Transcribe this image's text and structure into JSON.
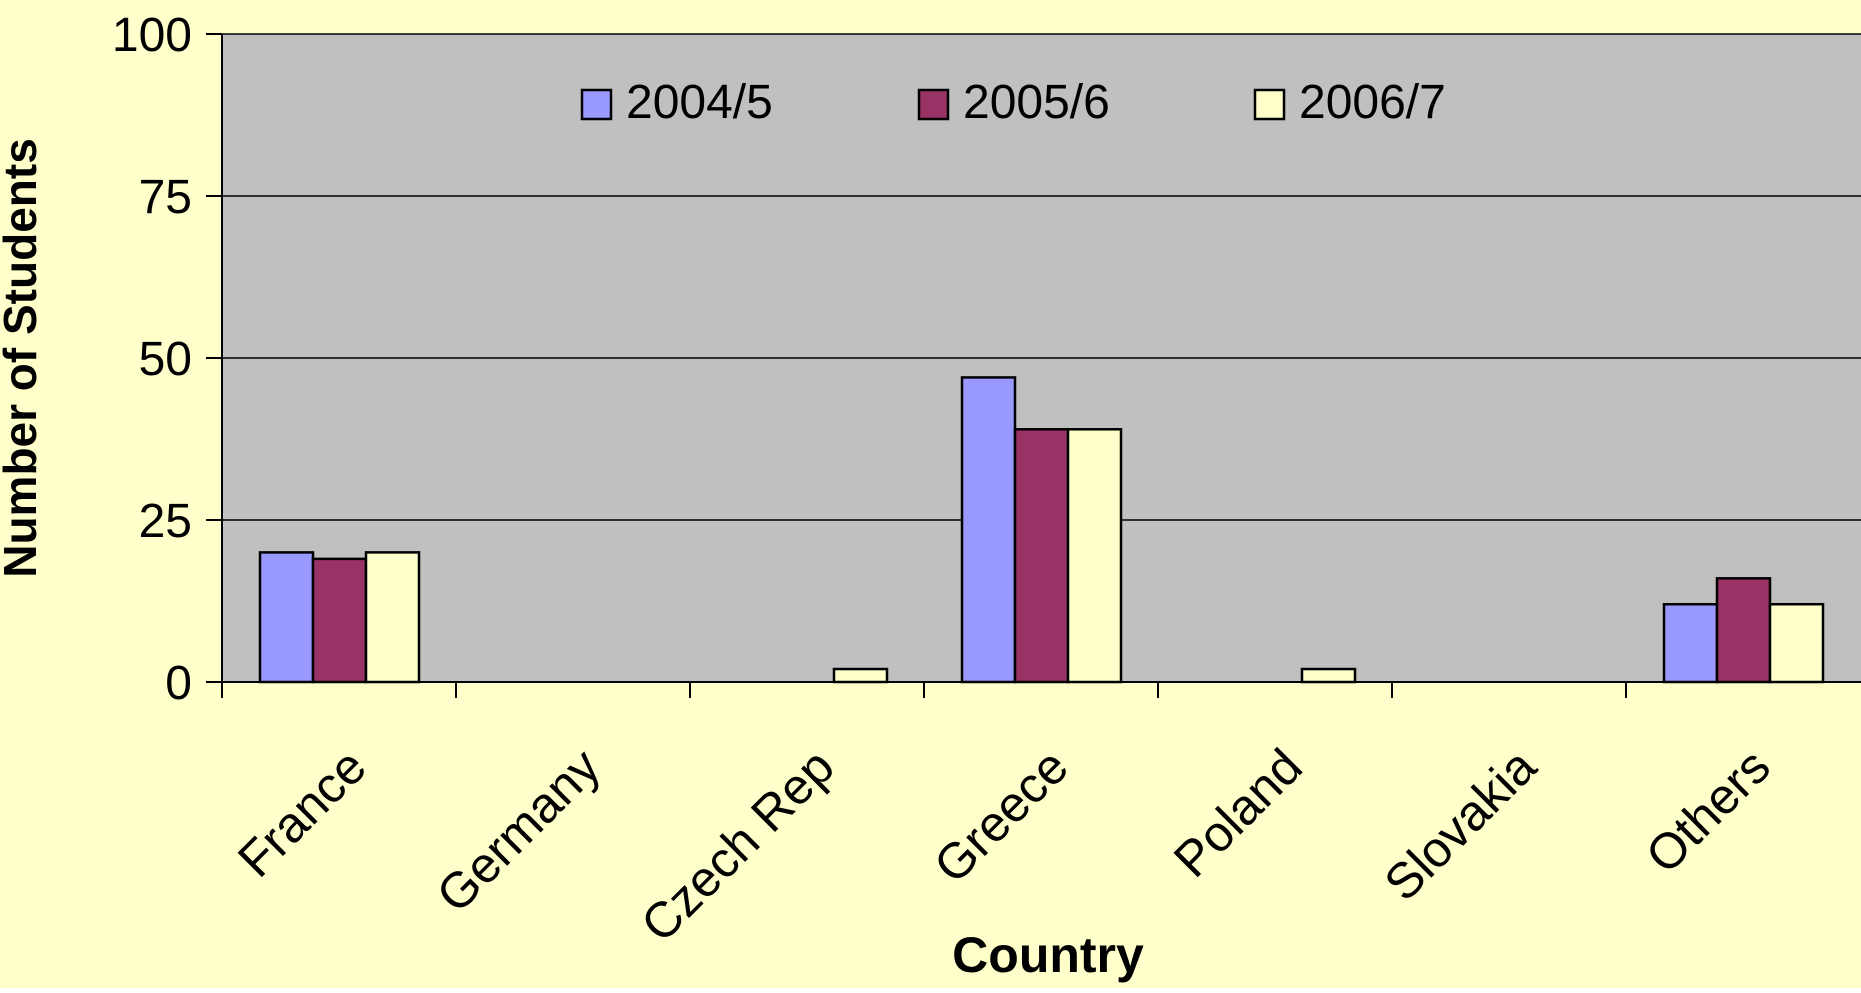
{
  "chart_data": {
    "type": "bar",
    "categories": [
      "France",
      "Germany",
      "Czech Rep",
      "Greece",
      "Poland",
      "Slovakia",
      "Others"
    ],
    "series": [
      {
        "name": "2004/5",
        "values": [
          20,
          0,
          0,
          47,
          0,
          0,
          12
        ]
      },
      {
        "name": "2005/6",
        "values": [
          19,
          0,
          0,
          39,
          0,
          0,
          16
        ]
      },
      {
        "name": "2006/7",
        "values": [
          20,
          0,
          2,
          39,
          2,
          0,
          12
        ]
      }
    ],
    "xlabel": "Country",
    "ylabel": "Number of Students",
    "ylim": [
      0,
      100
    ],
    "yticks": [
      "0",
      "25",
      "50",
      "75",
      "100"
    ],
    "grid": true,
    "legend_position": "top-center"
  },
  "colors": {
    "background": "#FFFFCC",
    "plot_area": "#C0C0C0",
    "gridline": "#000000",
    "series": [
      "#9999FF",
      "#993366",
      "#FFFFCC"
    ],
    "bar_border": "#000000",
    "text": "#000000"
  }
}
